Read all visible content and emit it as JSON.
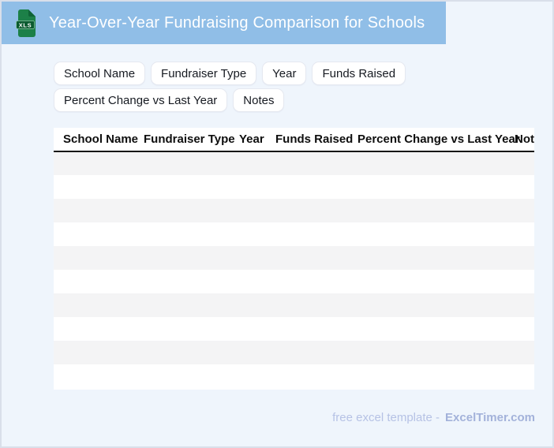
{
  "header": {
    "title": "Year-Over-Year Fundraising Comparison for Schools",
    "file_icon_label": "XLS"
  },
  "chips": [
    "School Name",
    "Fundraiser Type",
    "Year",
    "Funds Raised",
    "Percent Change vs Last Year",
    "Notes"
  ],
  "table": {
    "columns": [
      "School Name",
      "Fundraiser Type",
      "Year",
      "Funds Raised",
      "Percent Change vs Last Year",
      "Notes"
    ],
    "empty_row_count": 10
  },
  "footer": {
    "text": "free excel template -",
    "brand": "ExcelTimer.com"
  },
  "colors": {
    "banner_blue": "#90BEE7",
    "icon_green": "#1C8048",
    "icon_band_green": "#0B5B30",
    "row_stripe": "#F4F4F5",
    "page_background": "#EFF5FC",
    "footer_text": "#B6C2E5",
    "footer_brand": "#A3B2DA"
  }
}
